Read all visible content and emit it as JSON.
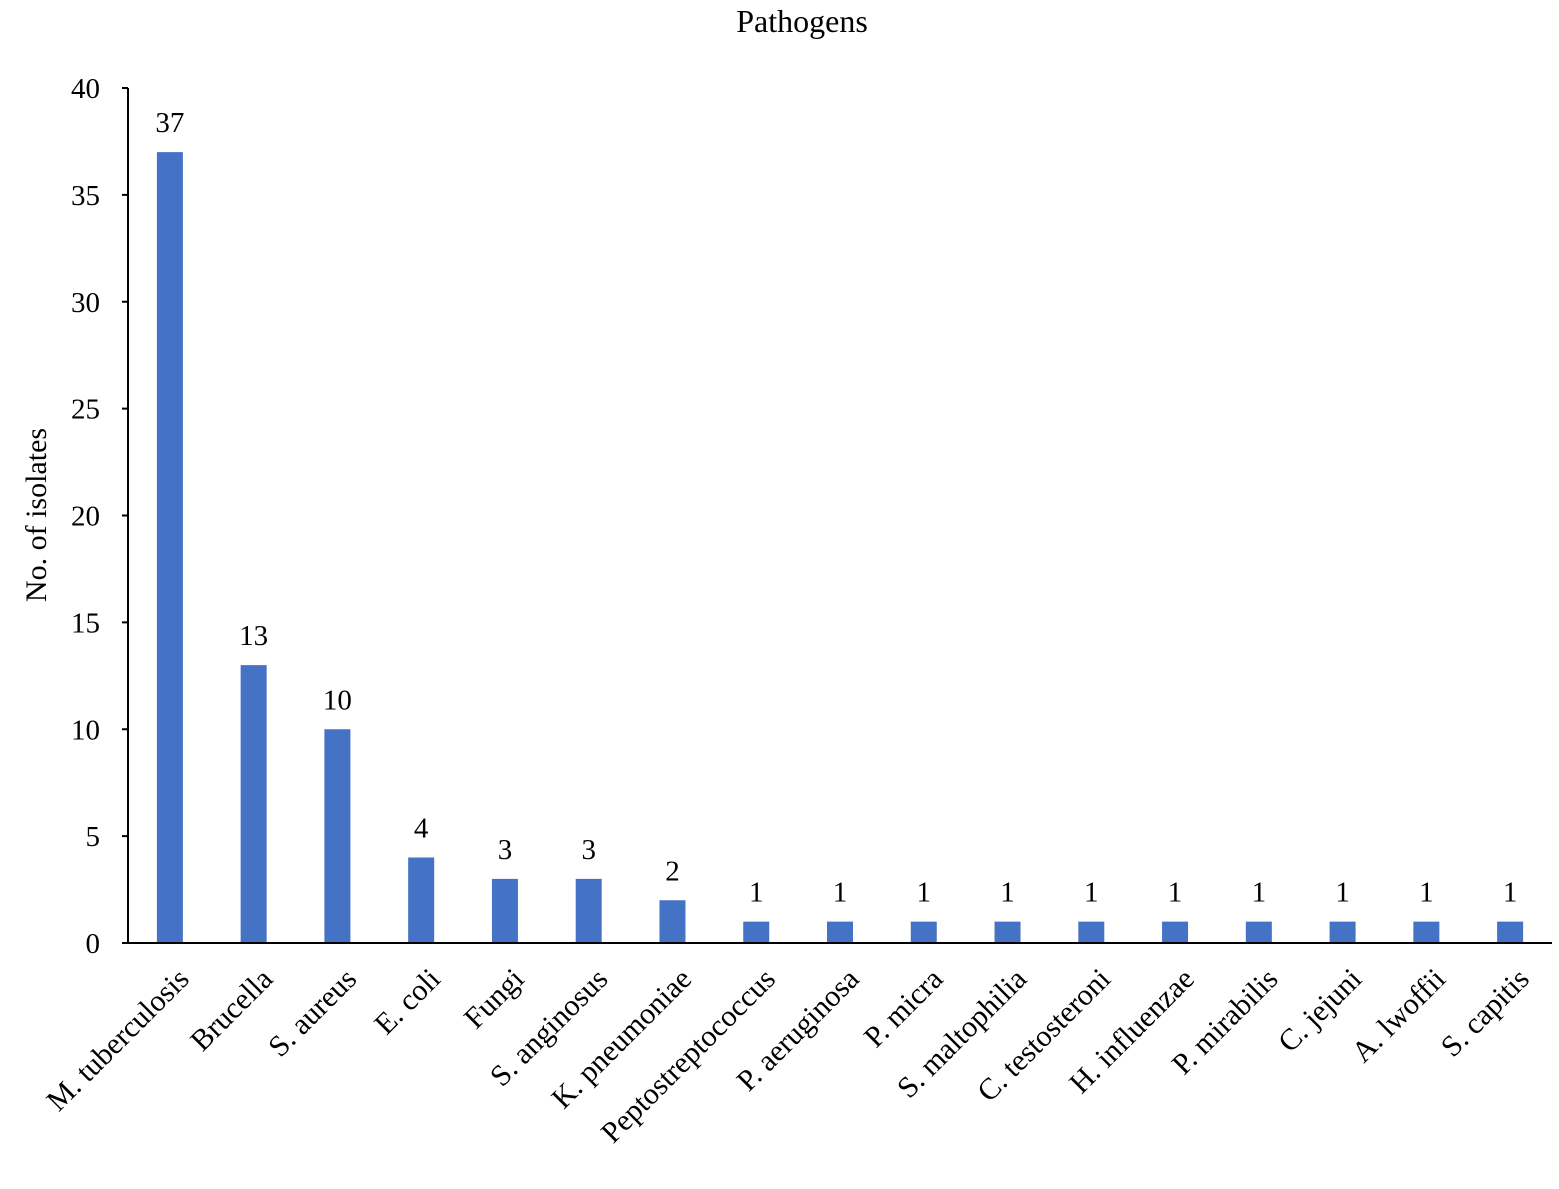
{
  "chart_data": {
    "type": "bar",
    "title": "Pathogens",
    "xlabel": "",
    "ylabel": "No. of isolates",
    "ylim": [
      0,
      40
    ],
    "yticks": [
      0,
      5,
      10,
      15,
      20,
      25,
      30,
      35,
      40
    ],
    "grid": false,
    "legend": "none",
    "bar_color": "#4472C4",
    "categories": [
      "M. tuberculosis",
      "Brucella",
      "S. aureus",
      "E. coli",
      "Fungi",
      "S. anginosus",
      "K. pneumoniae",
      "Peptostreptococcus",
      "P. aeruginosa",
      "P. micra",
      "S. maltophilia",
      "C. testosteroni",
      "H. influenzae",
      "P. mirabilis",
      "C. jejuni",
      "A. lwoffii",
      "S. capitis"
    ],
    "values": [
      37,
      13,
      10,
      4,
      3,
      3,
      2,
      1,
      1,
      1,
      1,
      1,
      1,
      1,
      1,
      1,
      1
    ],
    "data_labels": [
      "37",
      "13",
      "10",
      "4",
      "3",
      "3",
      "2",
      "1",
      "1",
      "1",
      "1",
      "1",
      "1",
      "1",
      "1",
      "1",
      "1"
    ]
  }
}
